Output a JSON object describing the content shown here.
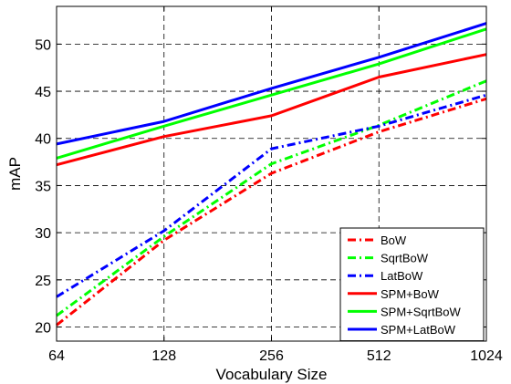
{
  "chart_data": {
    "type": "line",
    "xlabel": "Vocabulary Size",
    "ylabel": "mAP",
    "x_scale": "log2",
    "x": [
      64,
      128,
      256,
      512,
      1024
    ],
    "x_tick_labels": [
      "64",
      "128",
      "256",
      "512",
      "1024"
    ],
    "xlim": [
      64,
      1024
    ],
    "ylim": [
      18.5,
      54
    ],
    "y_ticks": [
      20,
      25,
      30,
      35,
      40,
      45,
      50
    ],
    "y_tick_labels": [
      "20",
      "25",
      "30",
      "35",
      "40",
      "45",
      "50"
    ],
    "grid": true,
    "legend_position": "bottom-right",
    "series": [
      {
        "name": "BoW",
        "color": "#ff0000",
        "style": "dashdot",
        "values": [
          20.2,
          29.2,
          36.3,
          40.7,
          44.2
        ]
      },
      {
        "name": "SqrtBoW",
        "color": "#00ff00",
        "style": "dashdot",
        "values": [
          21.2,
          29.6,
          37.3,
          41.4,
          46.1
        ]
      },
      {
        "name": "LatBoW",
        "color": "#0000ff",
        "style": "dashdot",
        "values": [
          23.2,
          30.2,
          38.9,
          41.3,
          44.6
        ]
      },
      {
        "name": "SPM+BoW",
        "color": "#ff0000",
        "style": "solid",
        "values": [
          37.2,
          40.2,
          42.4,
          46.5,
          48.9
        ]
      },
      {
        "name": "SPM+SqrtBoW",
        "color": "#00ff00",
        "style": "solid",
        "values": [
          37.9,
          41.3,
          44.6,
          47.9,
          51.6
        ]
      },
      {
        "name": "SPM+LatBoW",
        "color": "#0000ff",
        "style": "solid",
        "values": [
          39.4,
          41.8,
          45.3,
          48.6,
          52.2
        ]
      }
    ]
  }
}
